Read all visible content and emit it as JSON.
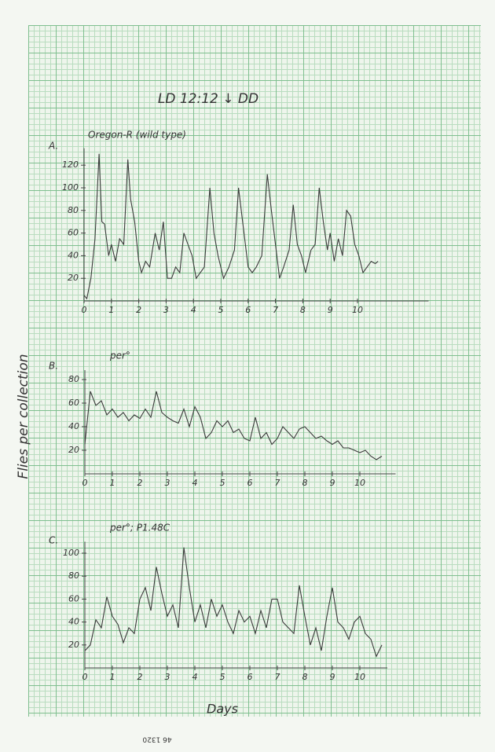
{
  "header": {
    "title": "LD 12:12 ↓ DD"
  },
  "y_axis_label": "Flies per collection",
  "x_axis_label": "Days",
  "footer": "46 1320",
  "chart_data": [
    {
      "type": "line",
      "panel": "A.",
      "title": "Oregon-R (wild type)",
      "color": "#3a3a3a",
      "x": [
        0,
        0.1,
        0.25,
        0.4,
        0.55,
        0.65,
        0.75,
        0.9,
        1.0,
        1.15,
        1.3,
        1.45,
        1.6,
        1.7,
        1.85,
        2.0,
        2.1,
        2.25,
        2.4,
        2.6,
        2.75,
        2.9,
        3.05,
        3.2,
        3.35,
        3.5,
        3.65,
        3.8,
        3.95,
        4.1,
        4.25,
        4.4,
        4.6,
        4.75,
        4.9,
        5.1,
        5.3,
        5.5,
        5.65,
        5.8,
        6.0,
        6.15,
        6.3,
        6.5,
        6.7,
        6.85,
        7.0,
        7.15,
        7.3,
        7.5,
        7.65,
        7.8,
        7.95,
        8.1,
        8.3,
        8.45,
        8.6,
        8.75,
        8.9,
        9.0,
        9.15,
        9.3,
        9.45,
        9.6,
        9.75,
        9.9,
        10.05,
        10.2,
        10.35,
        10.5,
        10.65,
        10.75
      ],
      "values": [
        5,
        2,
        20,
        55,
        130,
        70,
        68,
        40,
        50,
        35,
        55,
        50,
        125,
        90,
        70,
        35,
        25,
        35,
        30,
        60,
        45,
        70,
        20,
        20,
        30,
        25,
        60,
        50,
        40,
        20,
        25,
        30,
        100,
        60,
        40,
        20,
        30,
        45,
        100,
        70,
        30,
        25,
        30,
        40,
        112,
        80,
        50,
        20,
        30,
        45,
        85,
        50,
        40,
        25,
        45,
        50,
        100,
        70,
        45,
        60,
        35,
        55,
        40,
        80,
        75,
        50,
        40,
        25,
        30,
        35,
        33,
        35
      ],
      "xlim": [
        0,
        12.6
      ],
      "ylim": [
        0,
        135
      ],
      "xticks": [
        0,
        1,
        2,
        3,
        4,
        5,
        6,
        7,
        8,
        9,
        10
      ],
      "yticks": [
        20,
        40,
        60,
        80,
        100,
        120
      ]
    },
    {
      "type": "line",
      "panel": "B.",
      "title": "per°",
      "color": "#3a3a3a",
      "x": [
        0,
        0.2,
        0.4,
        0.6,
        0.8,
        1.0,
        1.2,
        1.4,
        1.6,
        1.8,
        2.0,
        2.2,
        2.4,
        2.6,
        2.8,
        3.0,
        3.2,
        3.4,
        3.6,
        3.8,
        4.0,
        4.2,
        4.4,
        4.6,
        4.8,
        5.0,
        5.2,
        5.4,
        5.6,
        5.8,
        6.0,
        6.2,
        6.4,
        6.6,
        6.8,
        7.0,
        7.2,
        7.4,
        7.6,
        7.8,
        8.0,
        8.2,
        8.4,
        8.6,
        8.8,
        9.0,
        9.2,
        9.4,
        9.6,
        9.8,
        10.0,
        10.2,
        10.4,
        10.6,
        10.8
      ],
      "values": [
        25,
        70,
        58,
        62,
        50,
        55,
        48,
        52,
        45,
        50,
        47,
        55,
        48,
        70,
        52,
        48,
        45,
        43,
        55,
        40,
        57,
        48,
        30,
        35,
        45,
        40,
        45,
        35,
        38,
        30,
        28,
        48,
        30,
        35,
        25,
        30,
        40,
        35,
        30,
        38,
        40,
        35,
        30,
        32,
        28,
        25,
        28,
        22,
        22,
        20,
        18,
        20,
        15,
        12,
        15
      ],
      "xlim": [
        0,
        11.3
      ],
      "ylim": [
        0,
        88
      ],
      "xticks": [
        0,
        1,
        2,
        3,
        4,
        5,
        6,
        7,
        8,
        9,
        10
      ],
      "yticks": [
        20,
        40,
        60,
        80
      ]
    },
    {
      "type": "line",
      "panel": "C.",
      "title": "per°; P1.48C",
      "color": "#3a3a3a",
      "x": [
        0,
        0.2,
        0.4,
        0.6,
        0.8,
        1.0,
        1.2,
        1.4,
        1.6,
        1.8,
        2.0,
        2.2,
        2.4,
        2.6,
        2.8,
        3.0,
        3.2,
        3.4,
        3.6,
        3.8,
        4.0,
        4.2,
        4.4,
        4.6,
        4.8,
        5.0,
        5.2,
        5.4,
        5.6,
        5.8,
        6.0,
        6.2,
        6.4,
        6.6,
        6.8,
        7.0,
        7.2,
        7.4,
        7.6,
        7.8,
        8.0,
        8.2,
        8.4,
        8.6,
        8.8,
        9.0,
        9.2,
        9.4,
        9.6,
        9.8,
        10.0,
        10.2,
        10.4,
        10.6,
        10.8
      ],
      "values": [
        15,
        20,
        42,
        35,
        62,
        45,
        38,
        22,
        35,
        30,
        60,
        70,
        50,
        88,
        65,
        45,
        55,
        35,
        105,
        70,
        40,
        55,
        35,
        60,
        45,
        55,
        40,
        30,
        50,
        40,
        45,
        30,
        50,
        35,
        60,
        60,
        40,
        35,
        30,
        72,
        45,
        20,
        35,
        15,
        45,
        70,
        40,
        35,
        25,
        40,
        45,
        30,
        25,
        10,
        20
      ],
      "xlim": [
        0,
        11.0
      ],
      "ylim": [
        0,
        110
      ],
      "xticks": [
        0,
        1,
        2,
        3,
        4,
        5,
        6,
        7,
        8,
        9,
        10
      ],
      "yticks": [
        20,
        40,
        60,
        80,
        100
      ]
    }
  ]
}
